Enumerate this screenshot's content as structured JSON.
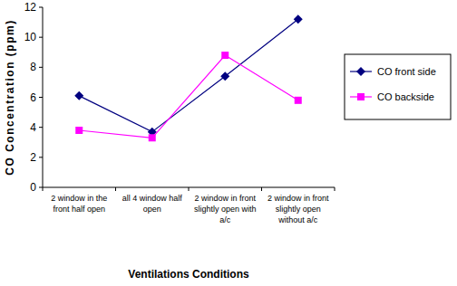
{
  "chart_data": {
    "type": "line",
    "x_label": "Ventilations Conditions",
    "y_label": "CO Concentration (ppm)",
    "categories": [
      "2 window in the front half open",
      "all 4 window half open",
      "2 window in front slightly open with a/c",
      "2 window in front slightly open without a/c"
    ],
    "series": [
      {
        "name": "CO front side",
        "color": "#000080",
        "marker": "diamond",
        "values": [
          6.1,
          3.7,
          7.4,
          11.2
        ]
      },
      {
        "name": "CO backside",
        "color": "#ff00ff",
        "marker": "square",
        "values": [
          3.8,
          3.3,
          8.8,
          5.8
        ]
      }
    ],
    "ylim": [
      0,
      12
    ],
    "yticks": [
      0,
      2,
      4,
      6,
      8,
      10,
      12
    ],
    "grid": false,
    "legend": "right"
  }
}
